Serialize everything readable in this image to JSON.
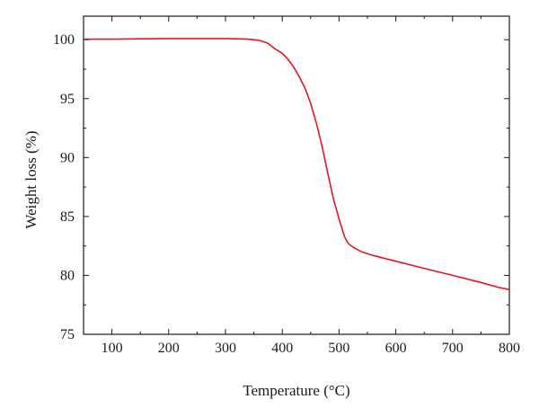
{
  "chart_data": {
    "type": "line",
    "xlabel": "Temperature (°C)",
    "ylabel": "Weight loss (%)",
    "xlim": [
      50,
      800
    ],
    "ylim": [
      75,
      102
    ],
    "x_ticks": [
      100,
      200,
      300,
      400,
      500,
      600,
      700,
      800
    ],
    "y_ticks": [
      75,
      80,
      85,
      90,
      95,
      100
    ],
    "grid": false,
    "series": [
      {
        "color": "#e8161c",
        "x": [
          50,
          100,
          150,
          200,
          250,
          300,
          340,
          360,
          375,
          385,
          400,
          410,
          420,
          430,
          440,
          450,
          460,
          470,
          480,
          490,
          500,
          505,
          510,
          515,
          520,
          525,
          530,
          540,
          560,
          600,
          650,
          700,
          750,
          780,
          800
        ],
        "y": [
          100.05,
          100.05,
          100.08,
          100.1,
          100.1,
          100.1,
          100.05,
          99.95,
          99.7,
          99.3,
          98.85,
          98.35,
          97.7,
          96.85,
          95.9,
          94.6,
          92.95,
          91.0,
          88.7,
          86.5,
          84.8,
          84.0,
          83.25,
          82.8,
          82.55,
          82.4,
          82.25,
          82.0,
          81.7,
          81.2,
          80.6,
          80.0,
          79.4,
          79.0,
          78.8
        ]
      }
    ]
  }
}
